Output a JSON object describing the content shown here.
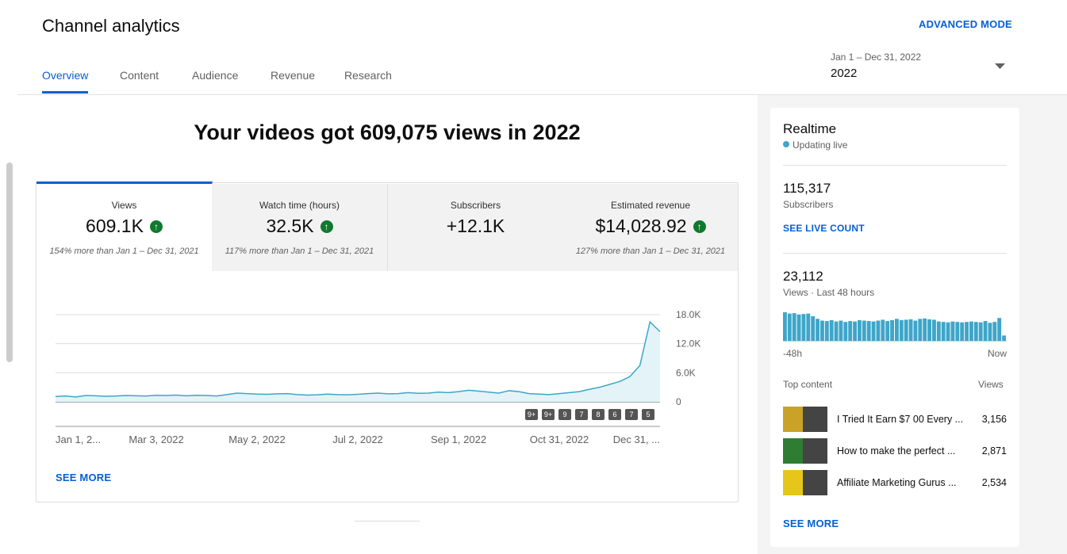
{
  "header": {
    "title": "Channel analytics",
    "advanced_mode": "ADVANCED MODE",
    "tabs": [
      "Overview",
      "Content",
      "Audience",
      "Revenue",
      "Research"
    ],
    "date_range": {
      "range": "Jan 1 – Dec 31, 2022",
      "label": "2022"
    }
  },
  "headline": "Your videos got 609,075 views in 2022",
  "metrics": [
    {
      "label": "Views",
      "value": "609.1K",
      "comparison": "154% more than Jan 1 – Dec 31, 2021"
    },
    {
      "label": "Watch time (hours)",
      "value": "32.5K",
      "comparison": "117% more than Jan 1 – Dec 31, 2021"
    },
    {
      "label": "Subscribers",
      "value": "+12.1K"
    },
    {
      "label": "Estimated revenue",
      "value": "$14,028.92",
      "comparison": "127% more than Jan 1 – Dec 31, 2021"
    }
  ],
  "chart_data": {
    "type": "line",
    "color": "#3ea6c9",
    "categories": [
      "Jan 1, 2...",
      null,
      null,
      null,
      null,
      null,
      null,
      null,
      null,
      null,
      "Mar 3, 2022",
      null,
      null,
      null,
      null,
      null,
      null,
      null,
      null,
      null,
      "May 2, 2022",
      null,
      null,
      null,
      null,
      null,
      null,
      null,
      null,
      null,
      "Jul 2, 2022",
      null,
      null,
      null,
      null,
      null,
      null,
      null,
      null,
      null,
      "Sep 1, 2022",
      null,
      null,
      null,
      null,
      null,
      null,
      null,
      null,
      null,
      "Oct 31, 2022",
      null,
      null,
      null,
      null,
      null,
      null,
      null,
      null,
      null,
      "Dec 31, ..."
    ],
    "values": [
      1100,
      1200,
      1000,
      1300,
      1250,
      1150,
      1200,
      1300,
      1250,
      1200,
      1350,
      1300,
      1400,
      1250,
      1350,
      1300,
      1200,
      1500,
      1800,
      1700,
      1600,
      1550,
      1650,
      1700,
      1500,
      1400,
      1450,
      1600,
      1500,
      1450,
      1550,
      1700,
      1800,
      1650,
      1700,
      1900,
      1750,
      1800,
      2000,
      1900,
      2100,
      2400,
      2200,
      2000,
      1800,
      2300,
      2100,
      1700,
      1600,
      1500,
      1700,
      1900,
      2100,
      2600,
      3000,
      3600,
      4200,
      5200,
      7500,
      16500,
      14500
    ],
    "ylim": [
      0,
      18000
    ],
    "yticks": [
      0,
      {
        "value": 6000,
        "label": "6.0K"
      },
      {
        "value": 12000,
        "label": "12.0K"
      },
      {
        "value": 18000,
        "label": "18.0K"
      }
    ],
    "grid": true
  },
  "video_markers": [
    "9+",
    "9+",
    "9",
    "7",
    "8",
    "6",
    "7",
    "5"
  ],
  "see_more": "SEE MORE",
  "realtime": {
    "title": "Realtime",
    "status": "Updating live",
    "subscribers": {
      "value": "115,317",
      "label": "Subscribers",
      "link": "SEE LIVE COUNT"
    },
    "views": {
      "value": "23,112",
      "label": "Views · Last 48 hours"
    },
    "chart": {
      "type": "bar",
      "color": "#3ea6c9",
      "values": [
        650,
        620,
        630,
        600,
        610,
        620,
        560,
        500,
        460,
        450,
        470,
        440,
        460,
        430,
        450,
        440,
        470,
        460,
        450,
        440,
        460,
        480,
        450,
        470,
        500,
        470,
        480,
        490,
        460,
        500,
        510,
        490,
        480,
        440,
        430,
        420,
        440,
        430,
        420,
        430,
        440,
        430,
        420,
        450,
        410,
        430,
        520,
        120
      ],
      "start_label": "-48h",
      "end_label": "Now"
    },
    "top_content": {
      "header": "Top content",
      "views_header": "Views",
      "items": [
        {
          "title": "I Tried It Earn $7 00 Every ...",
          "views": "3,156"
        },
        {
          "title": "How to make the perfect ...",
          "views": "2,871"
        },
        {
          "title": "Affiliate Marketing Gurus ...",
          "views": "2,534"
        }
      ],
      "see_more": "SEE MORE"
    }
  }
}
